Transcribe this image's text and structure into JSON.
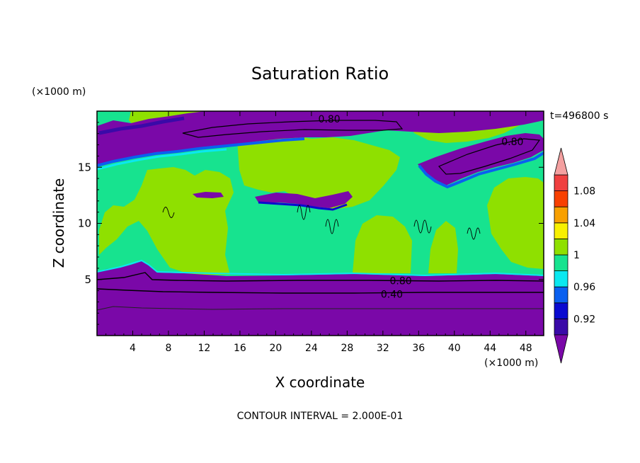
{
  "chart_data": {
    "type": "heatmap",
    "title": "Saturation Ratio",
    "xlabel": "X coordinate",
    "ylabel": "Z coordinate",
    "x_units": "(×1000 m)",
    "y_units": "(×1000 m)",
    "time_label": "t=496800 s",
    "footer": "CONTOUR INTERVAL = 2.000E-01",
    "xlim": [
      0,
      50
    ],
    "ylim": [
      0,
      20
    ],
    "x_ticks": [
      "4",
      "8",
      "12",
      "16",
      "20",
      "24",
      "28",
      "32",
      "36",
      "40",
      "44",
      "48"
    ],
    "y_ticks": [
      "5",
      "10",
      "15"
    ],
    "x_tick_values": [
      4,
      8,
      12,
      16,
      20,
      24,
      28,
      32,
      36,
      40,
      44,
      48
    ],
    "y_tick_values": [
      5,
      10,
      15
    ],
    "contour_labels": [
      {
        "text": "0.80",
        "x": 26.0,
        "y": 19.3
      },
      {
        "text": "0.80",
        "x": 46.5,
        "y": 17.3
      },
      {
        "text": "0.80",
        "x": 34.0,
        "y": 4.9
      },
      {
        "text": "0.40",
        "x": 33.0,
        "y": 3.7
      }
    ],
    "colorbar": {
      "labels": [
        "1.08",
        "1.04",
        "1",
        "0.96",
        "0.92"
      ],
      "label_values": [
        1.08,
        1.04,
        1.0,
        0.96,
        0.92
      ],
      "levels": [
        0.9,
        0.92,
        0.94,
        0.96,
        0.98,
        1.0,
        1.02,
        1.04,
        1.06,
        1.08,
        1.1
      ],
      "colors": [
        "#7a08a8",
        "#3a0aa8",
        "#0a0ad0",
        "#0a60f0",
        "#0ae8f0",
        "#17e38f",
        "#8fe000",
        "#f8f000",
        "#f8a000",
        "#f84000",
        "#f04040"
      ],
      "under_color": "#7a08a8",
      "over_color": "#f4a0a0"
    }
  }
}
